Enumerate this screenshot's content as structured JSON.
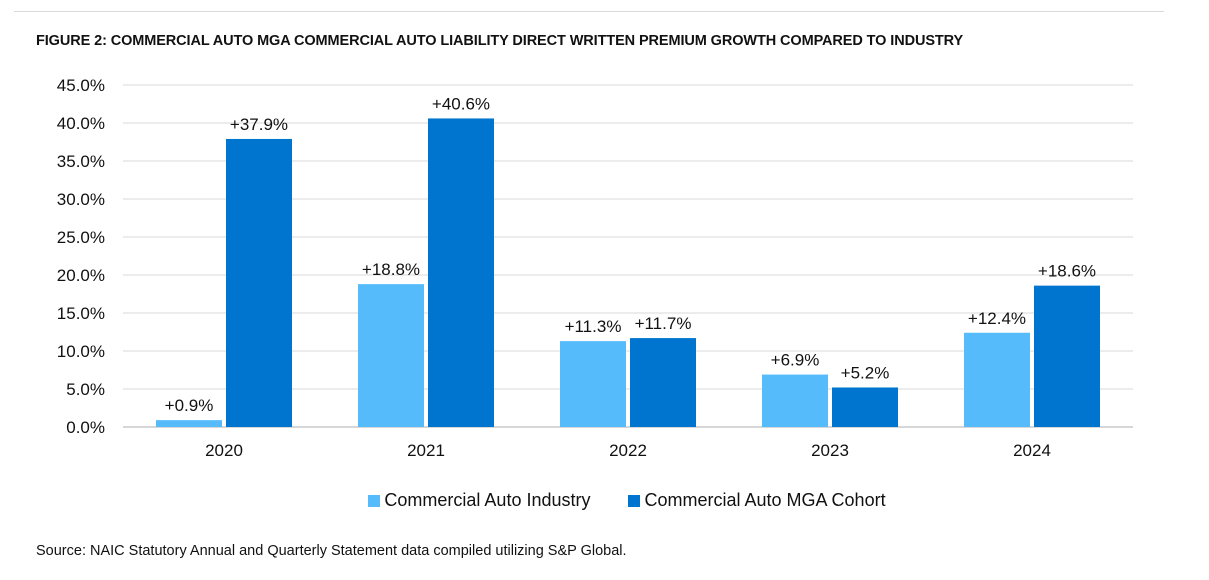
{
  "chart_data": {
    "type": "bar",
    "title": "FIGURE 2: COMMERCIAL AUTO MGA COMMERCIAL AUTO LIABILITY DIRECT WRITTEN PREMIUM GROWTH COMPARED TO INDUSTRY",
    "categories": [
      "2020",
      "2021",
      "2022",
      "2023",
      "2024"
    ],
    "series": [
      {
        "name": "Commercial Auto Industry",
        "color": "#55BBFB",
        "values": [
          0.9,
          18.8,
          11.3,
          6.9,
          12.4
        ],
        "labels": [
          "+0.9%",
          "+18.8%",
          "+11.3%",
          "+6.9%",
          "+12.4%"
        ]
      },
      {
        "name": "Commercial Auto MGA Cohort",
        "color": "#0075CF",
        "values": [
          37.9,
          40.6,
          11.7,
          5.2,
          18.6
        ],
        "labels": [
          "+37.9%",
          "+40.6%",
          "+11.7%",
          "+5.2%",
          "+18.6%"
        ]
      }
    ],
    "xlabel": "",
    "ylabel": "",
    "ylim": [
      0,
      45
    ],
    "yticks": [
      0,
      5,
      10,
      15,
      20,
      25,
      30,
      35,
      40,
      45
    ],
    "ytick_labels": [
      "0.0%",
      "5.0%",
      "10.0%",
      "15.0%",
      "20.0%",
      "25.0%",
      "30.0%",
      "35.0%",
      "40.0%",
      "45.0%"
    ],
    "grid": true,
    "legend_position": "bottom"
  },
  "source": "Source: NAIC Statutory Annual and Quarterly Statement data compiled utilizing S&P Global."
}
